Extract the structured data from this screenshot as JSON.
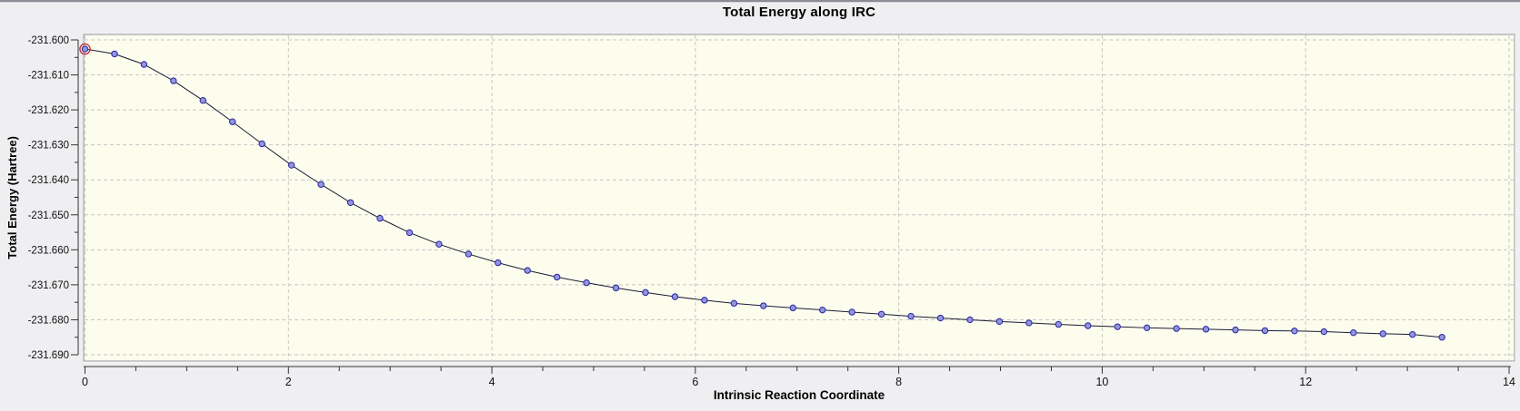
{
  "chart_data": {
    "type": "line",
    "title": "Total Energy along IRC",
    "xlabel": "Intrinsic Reaction Coordinate",
    "ylabel": "Total Energy (Hartree)",
    "xlim": [
      0,
      14
    ],
    "ylim": [
      -231.69,
      -231.6
    ],
    "x_ticks": [
      0,
      2,
      4,
      6,
      8,
      10,
      12,
      14
    ],
    "x_tick_labels": [
      "0",
      "2",
      "4",
      "6",
      "8",
      "10",
      "12",
      "14"
    ],
    "x_minor_step": 0.5,
    "y_ticks": [
      -231.6,
      -231.61,
      -231.62,
      -231.63,
      -231.64,
      -231.65,
      -231.66,
      -231.67,
      -231.68,
      -231.69
    ],
    "y_tick_labels": [
      "-231.600",
      "-231.610",
      "-231.620",
      "-231.630",
      "-231.640",
      "-231.650",
      "-231.660",
      "-231.670",
      "-231.680",
      "-231.690"
    ],
    "y_minor_step": 0.005,
    "grid": "dashed major gridlines, both axes",
    "legend": "none",
    "selected_point_index": 0,
    "series": [
      {
        "name": "Total Energy",
        "x": [
          0.0,
          0.29,
          0.58,
          0.87,
          1.16,
          1.45,
          1.74,
          2.03,
          2.32,
          2.61,
          2.9,
          3.19,
          3.48,
          3.77,
          4.06,
          4.35,
          4.64,
          4.93,
          5.22,
          5.51,
          5.8,
          6.09,
          6.38,
          6.67,
          6.96,
          7.25,
          7.54,
          7.83,
          8.12,
          8.41,
          8.7,
          8.99,
          9.28,
          9.57,
          9.86,
          10.15,
          10.44,
          10.73,
          11.02,
          11.31,
          11.6,
          11.89,
          12.18,
          12.47,
          12.76,
          13.05,
          13.34
        ],
        "y": [
          -231.6026,
          -231.604,
          -231.607,
          -231.6117,
          -231.6173,
          -231.6234,
          -231.6297,
          -231.6358,
          -231.6413,
          -231.6465,
          -231.651,
          -231.6551,
          -231.6584,
          -231.6612,
          -231.6637,
          -231.6659,
          -231.6678,
          -231.6694,
          -231.6709,
          -231.6722,
          -231.6734,
          -231.6744,
          -231.6753,
          -231.676,
          -231.6766,
          -231.6772,
          -231.6778,
          -231.6784,
          -231.679,
          -231.6795,
          -231.68,
          -231.6805,
          -231.6809,
          -231.6813,
          -231.6817,
          -231.682,
          -231.6823,
          -231.6825,
          -231.6827,
          -231.6829,
          -231.6831,
          -231.6832,
          -231.6834,
          -231.6837,
          -231.684,
          -231.6842,
          -231.685
        ]
      }
    ],
    "colors": {
      "background": "#efeff2",
      "plot_background": "#fdfdee",
      "gridline": "#c5c5c5",
      "axis": "#333333",
      "tick_label": "#111111",
      "line": "#1b1b33",
      "marker_fill": "#9494de",
      "marker_stroke": "#2626a0",
      "selected_ring": "#c23333",
      "panel_border_dark": "#94949c",
      "panel_border_light": "#ffffff"
    }
  }
}
